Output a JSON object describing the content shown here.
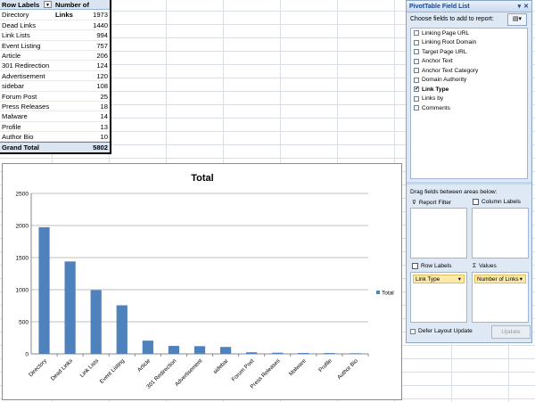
{
  "pivot": {
    "header": {
      "row_labels": "Row Labels",
      "number_of_links": "Number of Links"
    },
    "rows": [
      {
        "label": "Directory",
        "value": "1973"
      },
      {
        "label": "Dead Links",
        "value": "1440"
      },
      {
        "label": "Link Lists",
        "value": "994"
      },
      {
        "label": "Event Listing",
        "value": "757"
      },
      {
        "label": "Article",
        "value": "206"
      },
      {
        "label": "301 Redirection",
        "value": "124"
      },
      {
        "label": "Advertisement",
        "value": "120"
      },
      {
        "label": "sidebar",
        "value": "108"
      },
      {
        "label": "Forum Post",
        "value": "25"
      },
      {
        "label": "Press Releases",
        "value": "18"
      },
      {
        "label": "Malware",
        "value": "14"
      },
      {
        "label": "Profile",
        "value": "13"
      },
      {
        "label": "Author Bio",
        "value": "10"
      }
    ],
    "total": {
      "label": "Grand Total",
      "value": "5802"
    }
  },
  "chart_data": {
    "type": "bar",
    "title": "Total",
    "categories": [
      "Directory",
      "Dead Links",
      "Link Lists",
      "Event Listing",
      "Article",
      "301 Redirection",
      "Advertisement",
      "sidebar",
      "Forum Post",
      "Press Releases",
      "Malware",
      "Profile",
      "Author Bio"
    ],
    "series": [
      {
        "name": "Total",
        "values": [
          1973,
          1440,
          994,
          757,
          206,
          124,
          120,
          108,
          25,
          18,
          14,
          13,
          10
        ]
      }
    ],
    "ylim": [
      0,
      2500
    ],
    "yticks": [
      "0",
      "500",
      "1000",
      "1500",
      "2000",
      "2500"
    ],
    "grid": true,
    "legend": "right",
    "bar_color": "#4f81bd"
  },
  "field_list": {
    "title": "PivotTable Field List",
    "choose_label": "Choose fields to add to report:",
    "fields": [
      {
        "label": "Linking Page URL",
        "checked": false
      },
      {
        "label": "Linking Root Domain",
        "checked": false
      },
      {
        "label": "Target Page URL",
        "checked": false
      },
      {
        "label": "Anchor Text",
        "checked": false
      },
      {
        "label": "Anchor Text Category",
        "checked": false
      },
      {
        "label": "Domain Authority",
        "checked": false
      },
      {
        "label": "Link Type",
        "checked": true
      },
      {
        "label": "Links by",
        "checked": false
      },
      {
        "label": "Comments",
        "checked": false
      }
    ],
    "drag_label": "Drag fields between areas below:",
    "areas": {
      "report_filter": "Report Filter",
      "column_labels": "Column Labels",
      "row_labels": "Row Labels",
      "values": "Values"
    },
    "row_chip": "Link Type",
    "values_chip": "Number of Links",
    "defer_label": "Defer Layout Update",
    "update_label": "Update"
  }
}
